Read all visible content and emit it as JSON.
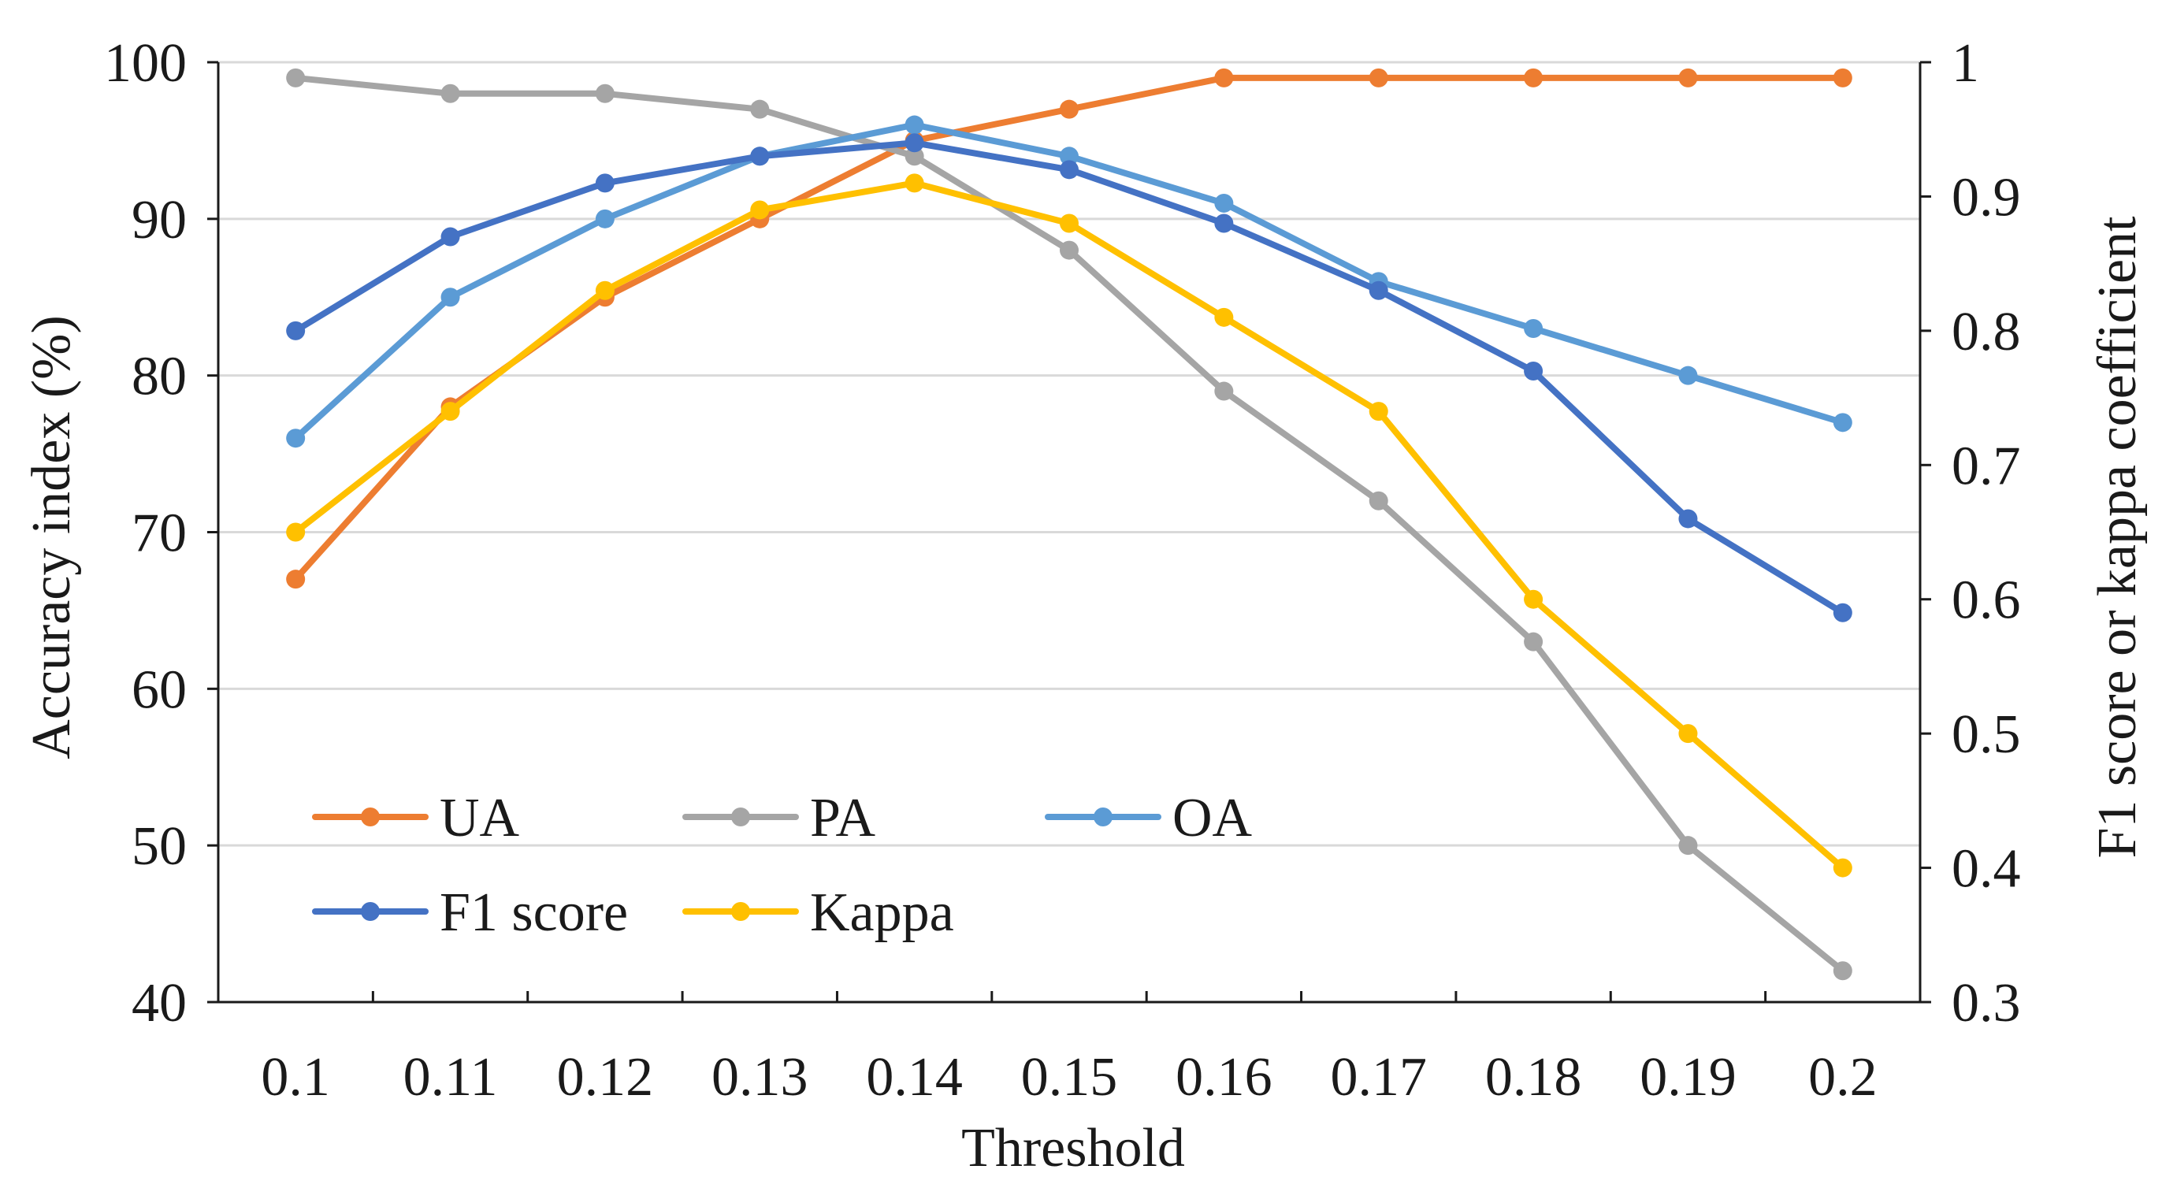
{
  "chart_data": {
    "type": "line",
    "title": "",
    "xlabel": "Threshold",
    "ylabel_left": "Accuracy index (%)",
    "ylabel_right": "F1 score or kappa coefficient",
    "x": [
      "0.1",
      "0.11",
      "0.12",
      "0.13",
      "0.14",
      "0.15",
      "0.16",
      "0.17",
      "0.18",
      "0.19",
      "0.2"
    ],
    "y_left_range": [
      40,
      100
    ],
    "y_left_ticks": [
      "40",
      "50",
      "60",
      "70",
      "80",
      "90",
      "100"
    ],
    "y_right_range": [
      0.3,
      1
    ],
    "y_right_ticks": [
      "0.3",
      "0.4",
      "0.5",
      "0.6",
      "0.7",
      "0.8",
      "0.9",
      "1"
    ],
    "grid": "horizontal",
    "legend_position": "bottom-left inside",
    "series": [
      {
        "name": "UA",
        "axis": "left",
        "color": "#ED7D31",
        "values": [
          67,
          78,
          85,
          90,
          95,
          97,
          99,
          99,
          99,
          99,
          99
        ]
      },
      {
        "name": "PA",
        "axis": "left",
        "color": "#A5A5A5",
        "values": [
          99,
          98,
          98,
          97,
          94,
          88,
          79,
          72,
          63,
          50,
          42
        ]
      },
      {
        "name": "OA",
        "axis": "left",
        "color": "#5B9BD5",
        "values": [
          76,
          85,
          90,
          94,
          96,
          94,
          91,
          86,
          83,
          80,
          77
        ]
      },
      {
        "name": "F1 score",
        "axis": "right",
        "color": "#4472C4",
        "values": [
          0.8,
          0.87,
          0.91,
          0.93,
          0.94,
          0.92,
          0.88,
          0.83,
          0.77,
          0.66,
          0.59
        ]
      },
      {
        "name": "Kappa",
        "axis": "right",
        "color": "#FFC000",
        "values": [
          0.65,
          0.74,
          0.83,
          0.89,
          0.91,
          0.88,
          0.81,
          0.74,
          0.6,
          0.5,
          0.4
        ]
      }
    ]
  }
}
